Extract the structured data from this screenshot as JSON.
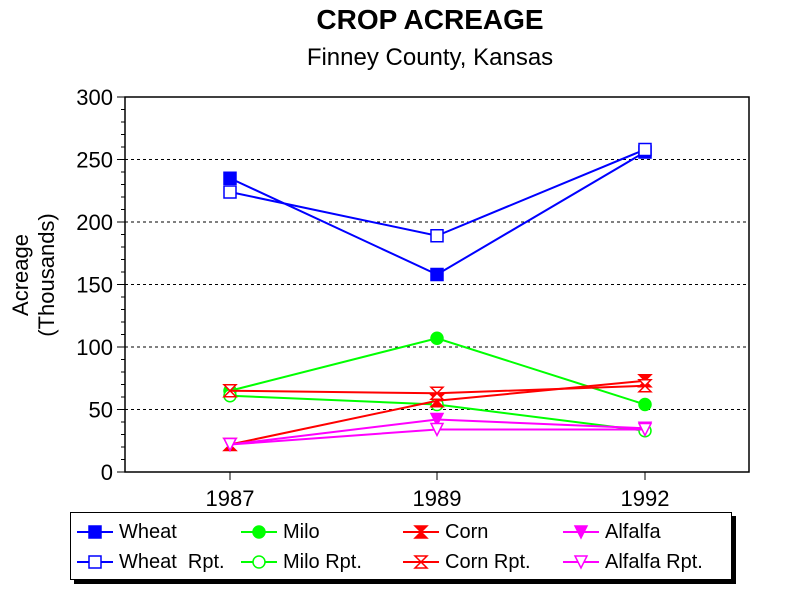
{
  "chart_data": {
    "type": "line",
    "title": "CROP ACREAGE",
    "subtitle": "Finney County, Kansas",
    "ylabel_line1": "Acreage",
    "ylabel_line2": "(Thousands)",
    "xlabel": "",
    "categories": [
      "1987",
      "1989",
      "1992"
    ],
    "ylim": [
      0,
      300
    ],
    "yticks": [
      0,
      50,
      100,
      150,
      200,
      250,
      300
    ],
    "grid": "horizontal dashed at 50, 100, 150, 200, 250",
    "legend_position": "bottom",
    "series": [
      {
        "name": "Wheat",
        "values": [
          235,
          158,
          256
        ],
        "color": "#0000ff",
        "marker": "square-filled"
      },
      {
        "name": "Wheat  Rpt.",
        "values": [
          224,
          189,
          258
        ],
        "color": "#0000ff",
        "marker": "square-open"
      },
      {
        "name": "Milo",
        "values": [
          65,
          107,
          54
        ],
        "color": "#00ff00",
        "marker": "circle-filled"
      },
      {
        "name": "Milo Rpt.",
        "values": [
          61,
          54,
          33
        ],
        "color": "#00ff00",
        "marker": "circle-open"
      },
      {
        "name": "Corn",
        "values": [
          22,
          57,
          73
        ],
        "color": "#ff0000",
        "marker": "hourglass-filled"
      },
      {
        "name": "Corn Rpt.",
        "values": [
          65,
          63,
          69
        ],
        "color": "#ff0000",
        "marker": "hourglass-open"
      },
      {
        "name": "Alfalfa",
        "values": [
          22,
          42,
          35
        ],
        "color": "#ff00ff",
        "marker": "triangle-down-filled"
      },
      {
        "name": "Alfalfa Rpt.",
        "values": [
          22,
          34,
          34
        ],
        "color": "#ff00ff",
        "marker": "triangle-down-open"
      }
    ]
  }
}
